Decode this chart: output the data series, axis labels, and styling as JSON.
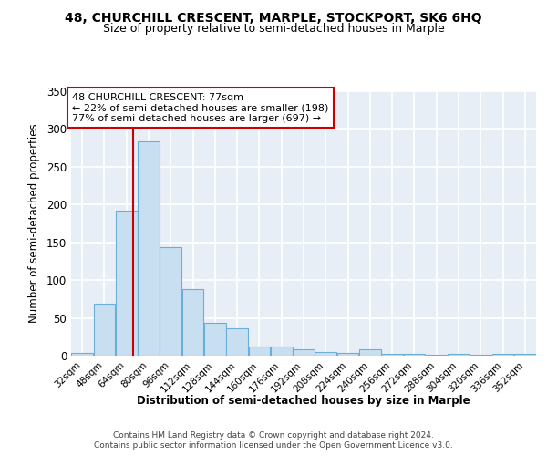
{
  "title1": "48, CHURCHILL CRESCENT, MARPLE, STOCKPORT, SK6 6HQ",
  "title2": "Size of property relative to semi-detached houses in Marple",
  "xlabel": "Distribution of semi-detached houses by size in Marple",
  "ylabel": "Number of semi-detached properties",
  "bins": [
    32,
    48,
    64,
    80,
    96,
    112,
    128,
    144,
    160,
    176,
    192,
    208,
    224,
    240,
    256,
    272,
    288,
    304,
    320,
    336,
    352
  ],
  "values": [
    4,
    69,
    192,
    284,
    144,
    88,
    43,
    36,
    12,
    12,
    9,
    5,
    4,
    9,
    3,
    2,
    1,
    3,
    1,
    3,
    3
  ],
  "bar_color": "#c8dff2",
  "bar_edge_color": "#6baed6",
  "property_size": 77,
  "annotation_line_color": "#cc0000",
  "annotation_box_color": "#cc0000",
  "annotation_text": "48 CHURCHILL CRESCENT: 77sqm\n← 22% of semi-detached houses are smaller (198)\n77% of semi-detached houses are larger (697) →",
  "footer1": "Contains HM Land Registry data © Crown copyright and database right 2024.",
  "footer2": "Contains public sector information licensed under the Open Government Licence v3.0.",
  "ylim": [
    0,
    350
  ],
  "yticks": [
    0,
    50,
    100,
    150,
    200,
    250,
    300,
    350
  ],
  "fig_bg": "#ffffff",
  "plot_bg": "#e8eef5",
  "grid_color": "#ffffff",
  "title1_fontsize": 10,
  "title2_fontsize": 9
}
